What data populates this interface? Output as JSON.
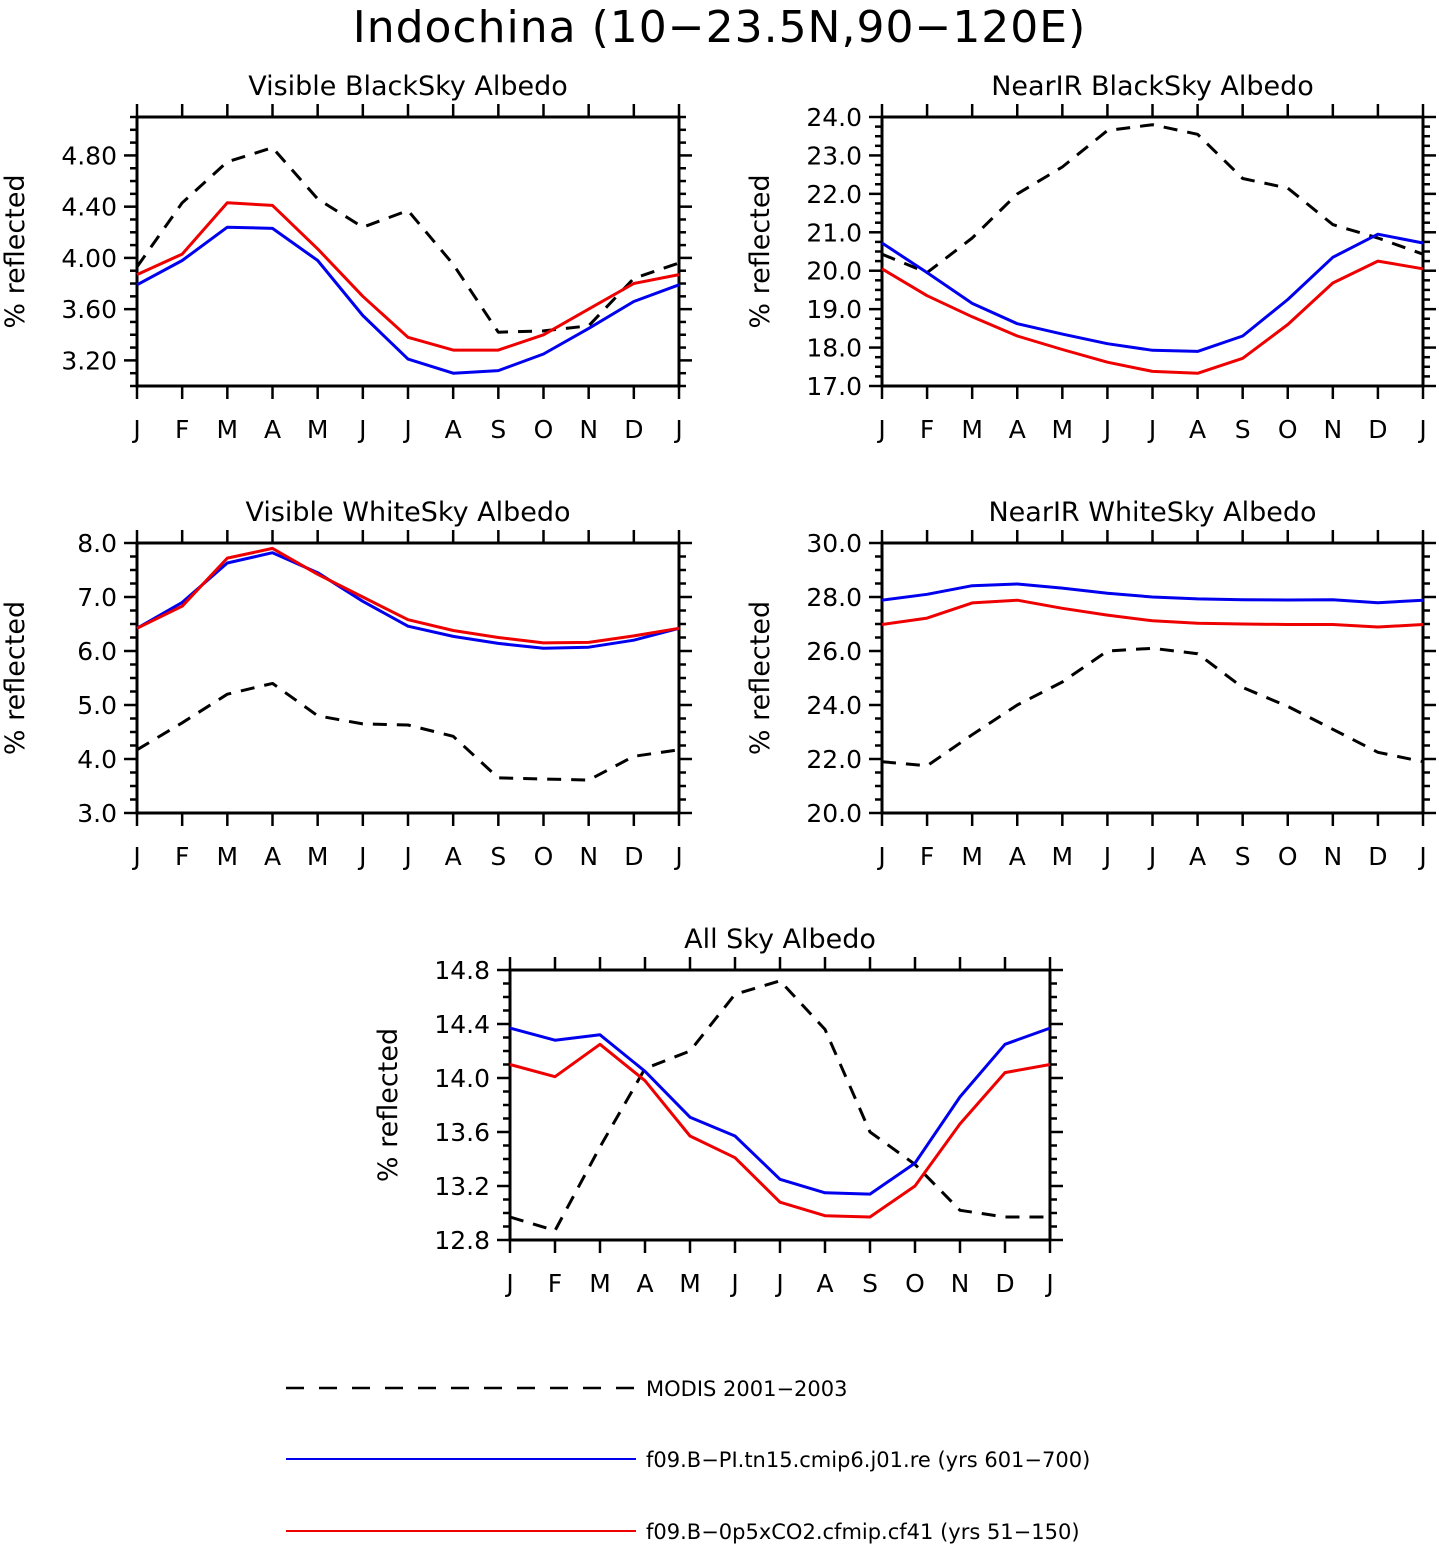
{
  "title": "Indochina (10−23.5N,90−120E)",
  "colors": {
    "modis": "#000000",
    "pi": "#0000ee",
    "co2": "#ee0000"
  },
  "legend": [
    {
      "key": "modis",
      "label": "MODIS 2001−2003",
      "style": "dashed"
    },
    {
      "key": "pi",
      "label": "f09.B−PI.tn15.cmip6.j01.re (yrs 601−700)",
      "style": "solid"
    },
    {
      "key": "co2",
      "label": "f09.B−0p5xCO2.cfmip.cf41 (yrs 51−150)",
      "style": "solid"
    }
  ],
  "chart_data": [
    {
      "type": "line",
      "title": "Visible BlackSky Albedo",
      "ylabel": "% reflected",
      "categories": [
        "J",
        "F",
        "M",
        "A",
        "M",
        "J",
        "J",
        "A",
        "S",
        "O",
        "N",
        "D",
        "J"
      ],
      "ylim": [
        3.0,
        5.1
      ],
      "yticks": [
        3.2,
        3.6,
        4.0,
        4.4,
        4.8
      ],
      "ytick_labels": [
        "3.20",
        "3.60",
        "4.00",
        "4.40",
        "4.80"
      ],
      "series": [
        {
          "key": "modis",
          "values": [
            3.93,
            4.43,
            4.75,
            4.86,
            4.46,
            4.24,
            4.37,
            3.95,
            3.42,
            3.43,
            3.47,
            3.84,
            3.96
          ]
        },
        {
          "key": "pi",
          "values": [
            3.79,
            3.98,
            4.24,
            4.23,
            3.98,
            3.55,
            3.21,
            3.1,
            3.12,
            3.25,
            3.45,
            3.66,
            3.79
          ]
        },
        {
          "key": "co2",
          "values": [
            3.87,
            4.03,
            4.43,
            4.41,
            4.07,
            3.7,
            3.38,
            3.28,
            3.28,
            3.4,
            3.6,
            3.8,
            3.87
          ]
        }
      ]
    },
    {
      "type": "line",
      "title": "NearIR BlackSky Albedo",
      "ylabel": "% reflected",
      "categories": [
        "J",
        "F",
        "M",
        "A",
        "M",
        "J",
        "J",
        "A",
        "S",
        "O",
        "N",
        "D",
        "J"
      ],
      "ylim": [
        17.0,
        24.0
      ],
      "yticks": [
        17.0,
        18.0,
        19.0,
        20.0,
        21.0,
        22.0,
        23.0,
        24.0
      ],
      "ytick_labels": [
        "17.0",
        "18.0",
        "19.0",
        "20.0",
        "21.0",
        "22.0",
        "23.0",
        "24.0"
      ],
      "series": [
        {
          "key": "modis",
          "values": [
            20.43,
            19.95,
            20.85,
            22.0,
            22.7,
            23.65,
            23.8,
            23.55,
            22.4,
            22.15,
            21.2,
            20.85,
            20.43
          ]
        },
        {
          "key": "pi",
          "values": [
            20.72,
            19.95,
            19.15,
            18.62,
            18.35,
            18.1,
            17.93,
            17.9,
            18.3,
            19.25,
            20.35,
            20.95,
            20.72
          ]
        },
        {
          "key": "co2",
          "values": [
            20.05,
            19.35,
            18.8,
            18.3,
            17.95,
            17.62,
            17.38,
            17.33,
            17.72,
            18.6,
            19.68,
            20.25,
            20.05
          ]
        }
      ]
    },
    {
      "type": "line",
      "title": "Visible WhiteSky Albedo",
      "ylabel": "% reflected",
      "categories": [
        "J",
        "F",
        "M",
        "A",
        "M",
        "J",
        "J",
        "A",
        "S",
        "O",
        "N",
        "D",
        "J"
      ],
      "ylim": [
        3.0,
        8.0
      ],
      "yticks": [
        3.0,
        4.0,
        5.0,
        6.0,
        7.0,
        8.0
      ],
      "ytick_labels": [
        "3.0",
        "4.0",
        "5.0",
        "6.0",
        "7.0",
        "8.0"
      ],
      "series": [
        {
          "key": "modis",
          "values": [
            4.17,
            4.67,
            5.2,
            5.4,
            4.8,
            4.65,
            4.63,
            4.42,
            3.65,
            3.63,
            3.61,
            4.05,
            4.17
          ]
        },
        {
          "key": "pi",
          "values": [
            6.42,
            6.9,
            7.63,
            7.82,
            7.45,
            6.92,
            6.46,
            6.27,
            6.14,
            6.05,
            6.07,
            6.2,
            6.42
          ]
        },
        {
          "key": "co2",
          "values": [
            6.42,
            6.83,
            7.72,
            7.9,
            7.42,
            7.0,
            6.58,
            6.38,
            6.25,
            6.15,
            6.16,
            6.28,
            6.42
          ]
        }
      ]
    },
    {
      "type": "line",
      "title": "NearIR WhiteSky Albedo",
      "ylabel": "% reflected",
      "categories": [
        "J",
        "F",
        "M",
        "A",
        "M",
        "J",
        "J",
        "A",
        "S",
        "O",
        "N",
        "D",
        "J"
      ],
      "ylim": [
        20.0,
        30.0
      ],
      "yticks": [
        20.0,
        22.0,
        24.0,
        26.0,
        28.0,
        30.0
      ],
      "ytick_labels": [
        "20.0",
        "22.0",
        "24.0",
        "26.0",
        "28.0",
        "30.0"
      ],
      "series": [
        {
          "key": "modis",
          "values": [
            21.9,
            21.75,
            22.9,
            24.0,
            24.85,
            26.0,
            26.1,
            25.9,
            24.65,
            23.95,
            23.1,
            22.25,
            21.9
          ]
        },
        {
          "key": "pi",
          "values": [
            27.88,
            28.1,
            28.42,
            28.48,
            28.33,
            28.14,
            28.0,
            27.93,
            27.9,
            27.89,
            27.9,
            27.79,
            27.88
          ]
        },
        {
          "key": "co2",
          "values": [
            26.98,
            27.22,
            27.78,
            27.88,
            27.58,
            27.33,
            27.12,
            27.03,
            27.0,
            26.98,
            26.98,
            26.89,
            26.98
          ]
        }
      ]
    },
    {
      "type": "line",
      "title": "All Sky Albedo",
      "ylabel": "% reflected",
      "categories": [
        "J",
        "F",
        "M",
        "A",
        "M",
        "J",
        "J",
        "A",
        "S",
        "O",
        "N",
        "D",
        "J"
      ],
      "ylim": [
        12.8,
        14.8
      ],
      "yticks": [
        12.8,
        13.2,
        13.6,
        14.0,
        14.4,
        14.8
      ],
      "ytick_labels": [
        "12.8",
        "13.2",
        "13.6",
        "14.0",
        "14.4",
        "14.8"
      ],
      "series": [
        {
          "key": "modis",
          "values": [
            12.97,
            12.87,
            13.49,
            14.07,
            14.2,
            14.62,
            14.72,
            14.36,
            13.6,
            13.36,
            13.02,
            12.97,
            12.97
          ]
        },
        {
          "key": "pi",
          "values": [
            14.37,
            14.28,
            14.32,
            14.05,
            13.71,
            13.57,
            13.25,
            13.15,
            13.14,
            13.37,
            13.86,
            14.25,
            14.37
          ]
        },
        {
          "key": "co2",
          "values": [
            14.1,
            14.01,
            14.25,
            13.98,
            13.57,
            13.41,
            13.08,
            12.98,
            12.97,
            13.2,
            13.66,
            14.04,
            14.1
          ]
        }
      ]
    }
  ]
}
